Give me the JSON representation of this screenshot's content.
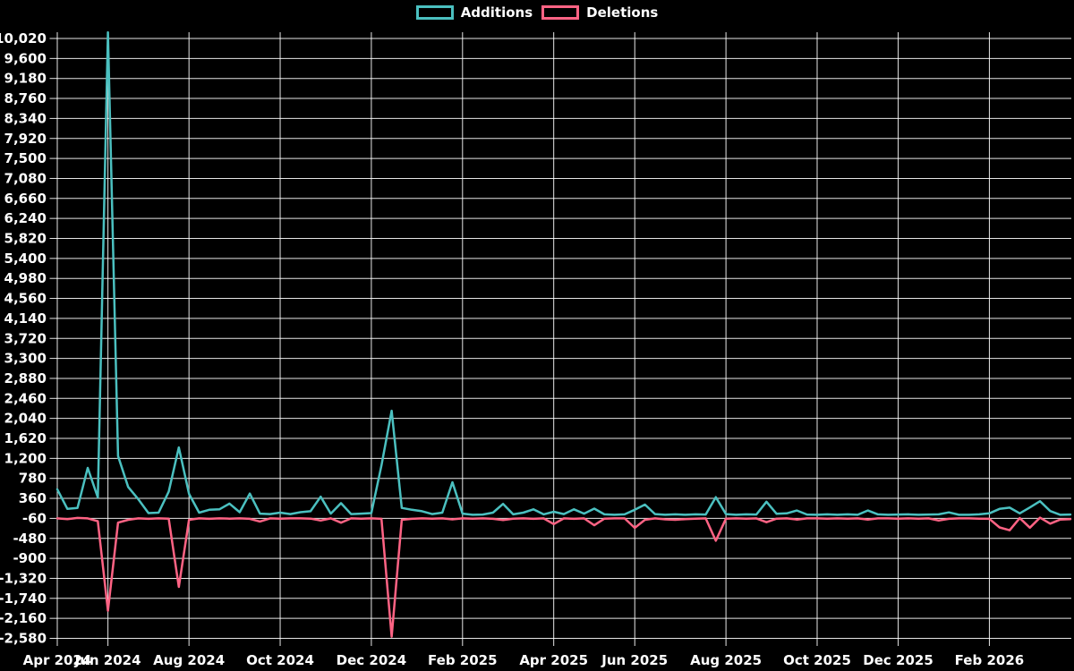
{
  "chart_data": {
    "type": "line",
    "title": "",
    "legend_position": "top",
    "background_color": "#000000",
    "grid_color": "rgba(255,255,255,0.9)",
    "text_color": "#ffffff",
    "grid": true,
    "y_axis": {
      "min": -2580,
      "max": 10020,
      "step": 420
    },
    "x_labels": [
      {
        "label": "Apr 2024",
        "week": 0
      },
      {
        "label": "Jun 2024",
        "week": 5
      },
      {
        "label": "Aug 2024",
        "week": 13
      },
      {
        "label": "Oct 2024",
        "week": 22
      },
      {
        "label": "Dec 2024",
        "week": 31
      },
      {
        "label": "Feb 2025",
        "week": 40
      },
      {
        "label": "Apr 2025",
        "week": 49
      },
      {
        "label": "Jun 2025",
        "week": 57
      },
      {
        "label": "Aug 2025",
        "week": 66
      },
      {
        "label": "Oct 2025",
        "week": 75
      },
      {
        "label": "Dec 2025",
        "week": 83
      },
      {
        "label": "Feb 2026",
        "week": 92
      }
    ],
    "n_points": 101,
    "legend": [
      {
        "name": "Additions",
        "color": "#4bc0c0"
      },
      {
        "name": "Deletions",
        "color": "#ff6384"
      }
    ],
    "series": [
      {
        "name": "Additions",
        "color": "#4bc0c0",
        "values": [
          550,
          140,
          160,
          1000,
          380,
          10150,
          1250,
          600,
          340,
          50,
          60,
          500,
          1430,
          455,
          60,
          120,
          130,
          250,
          70,
          460,
          40,
          30,
          60,
          30,
          70,
          90,
          395,
          40,
          260,
          30,
          40,
          50,
          1050,
          2200,
          160,
          120,
          90,
          30,
          60,
          700,
          40,
          15,
          20,
          60,
          245,
          25,
          60,
          130,
          25,
          80,
          30,
          130,
          40,
          145,
          25,
          15,
          25,
          120,
          230,
          30,
          15,
          25,
          15,
          25,
          20,
          385,
          30,
          15,
          25,
          20,
          290,
          35,
          45,
          105,
          20,
          15,
          25,
          15,
          25,
          15,
          105,
          25,
          15,
          20,
          25,
          15,
          20,
          25,
          65,
          15,
          15,
          25,
          45,
          140,
          165,
          45,
          170,
          300,
          95,
          15,
          20
        ]
      },
      {
        "name": "Deletions",
        "color": "#ff6384",
        "values": [
          -60,
          -75,
          -50,
          -60,
          -120,
          -2000,
          -150,
          -90,
          -60,
          -70,
          -60,
          -65,
          -1500,
          -90,
          -60,
          -70,
          -60,
          -65,
          -60,
          -70,
          -125,
          -60,
          -65,
          -60,
          -60,
          -65,
          -105,
          -60,
          -150,
          -60,
          -65,
          -60,
          -70,
          -2545,
          -90,
          -70,
          -60,
          -65,
          -60,
          -80,
          -60,
          -65,
          -60,
          -70,
          -95,
          -65,
          -60,
          -70,
          -60,
          -180,
          -60,
          -70,
          -60,
          -205,
          -65,
          -60,
          -60,
          -260,
          -90,
          -60,
          -80,
          -90,
          -75,
          -65,
          -60,
          -530,
          -65,
          -60,
          -65,
          -60,
          -140,
          -65,
          -60,
          -85,
          -60,
          -60,
          -65,
          -60,
          -65,
          -60,
          -85,
          -60,
          -60,
          -65,
          -60,
          -65,
          -60,
          -105,
          -70,
          -60,
          -60,
          -65,
          -70,
          -250,
          -310,
          -55,
          -255,
          -45,
          -170,
          -85,
          -75
        ]
      }
    ]
  }
}
